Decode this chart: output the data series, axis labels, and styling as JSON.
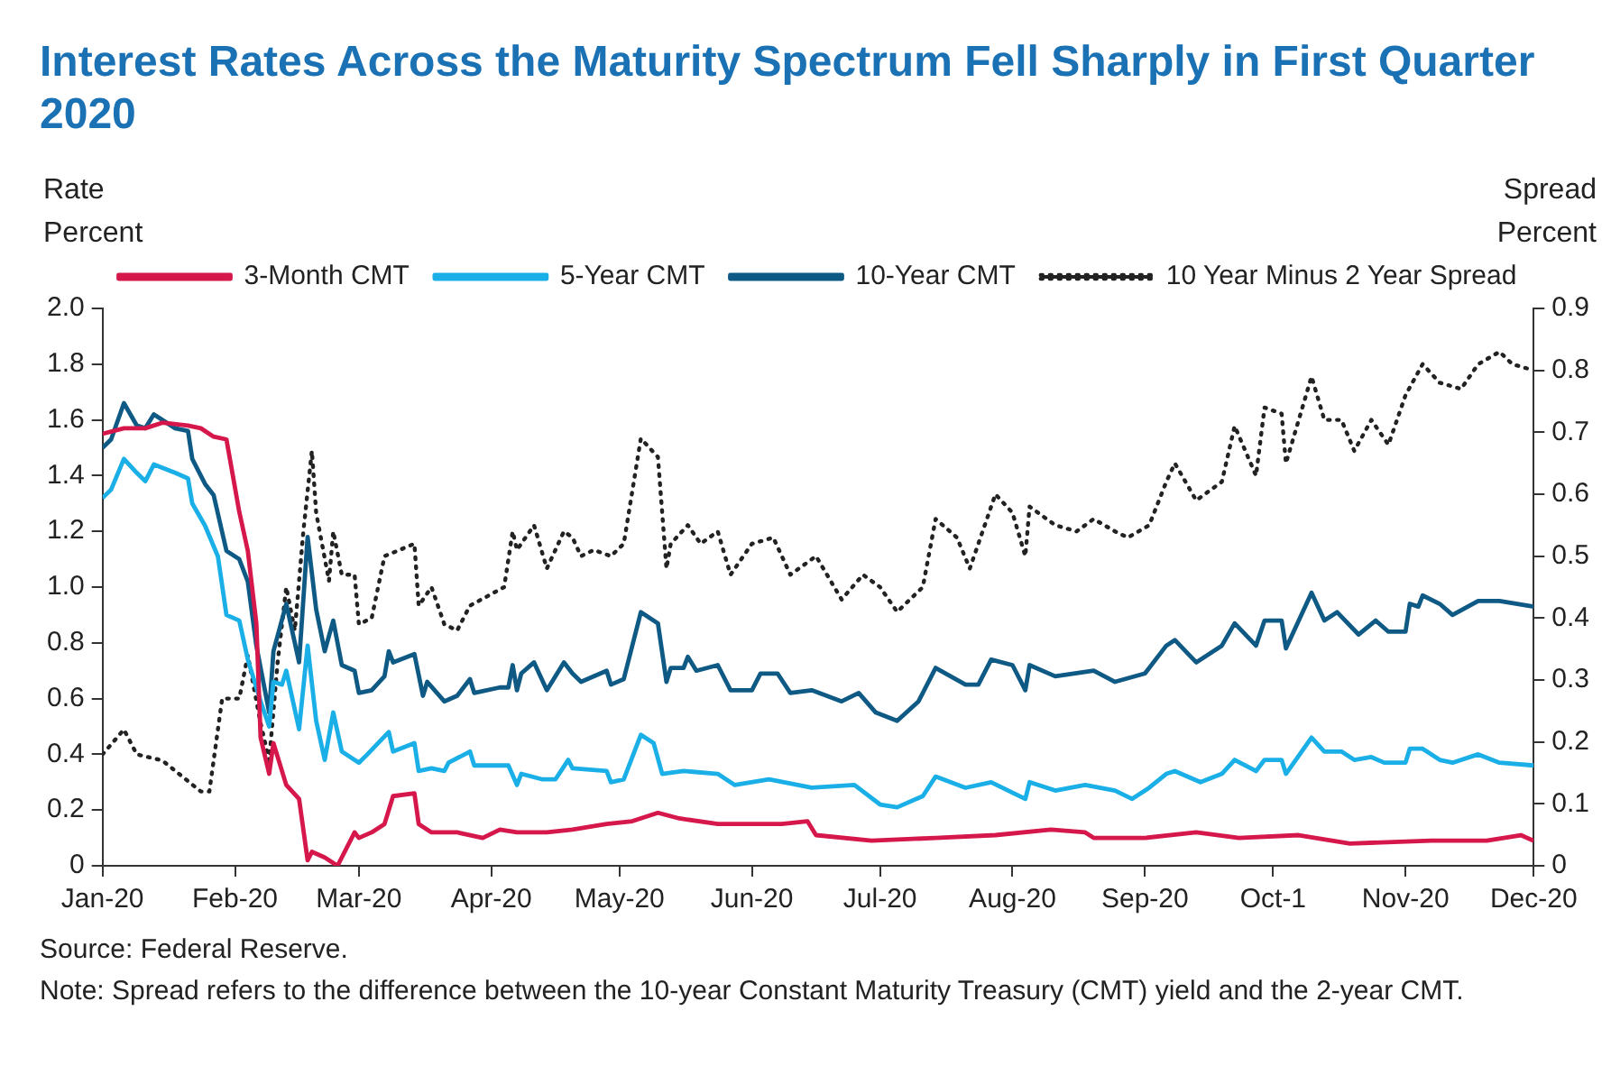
{
  "chart_data": {
    "type": "line",
    "title": "Interest Rates Across the Maturity Spectrum Fell Sharply in First Quarter 2020",
    "ylabel": "Rate\nPercent",
    "y2label": "Spread\nPercent",
    "xlim": [
      "2020-01-01",
      "2020-12-01"
    ],
    "xticks": [
      {
        "value": "2020-01-01",
        "label": "Jan-20"
      },
      {
        "value": "2020-02-01",
        "label": "Feb-20"
      },
      {
        "value": "2020-03-01",
        "label": "Mar-20"
      },
      {
        "value": "2020-04-01",
        "label": "Apr-20"
      },
      {
        "value": "2020-05-01",
        "label": "May-20"
      },
      {
        "value": "2020-06-01",
        "label": "Jun-20"
      },
      {
        "value": "2020-07-01",
        "label": "Jul-20"
      },
      {
        "value": "2020-08-01",
        "label": "Aug-20"
      },
      {
        "value": "2020-09-01",
        "label": "Sep-20"
      },
      {
        "value": "2020-10-01",
        "label": "Oct-1"
      },
      {
        "value": "2020-11-01",
        "label": "Nov-20"
      },
      {
        "value": "2020-12-01",
        "label": "Dec-20"
      }
    ],
    "ylim": [
      0,
      2
    ],
    "yticks": [
      0,
      0.2,
      0.4,
      0.6,
      0.8,
      {
        "value": 1,
        "label": "1.0"
      },
      1.2,
      1.4,
      1.6,
      1.8,
      {
        "value": 2,
        "label": "2.0"
      }
    ],
    "y2lim": [
      0,
      0.9
    ],
    "y2ticks": [
      0,
      0.1,
      0.2,
      0.3,
      0.4,
      0.5,
      0.6,
      0.7,
      0.8,
      0.9
    ],
    "grid": false,
    "legend": "top",
    "marker": "none",
    "series": [
      {
        "name": "3-Month CMT",
        "color": "#d6174b",
        "line_style": "solid",
        "x": [
          "2020-01-01",
          "2020-01-06",
          "2020-01-11",
          "2020-01-15",
          "2020-01-21",
          "2020-01-24",
          "2020-01-27",
          "2020-01-30",
          "2020-02-02",
          "2020-02-04",
          "2020-02-06",
          "2020-02-07",
          "2020-02-09",
          "2020-02-10",
          "2020-02-13",
          "2020-02-16",
          "2020-02-18",
          "2020-02-19",
          "2020-02-22",
          "2020-02-25",
          "2020-02-29",
          "2020-03-01",
          "2020-03-04",
          "2020-03-07",
          "2020-03-09",
          "2020-03-14",
          "2020-03-15",
          "2020-03-18",
          "2020-03-24",
          "2020-03-30",
          "2020-04-03",
          "2020-04-07",
          "2020-04-14",
          "2020-04-20",
          "2020-04-28",
          "2020-05-04",
          "2020-05-10",
          "2020-05-15",
          "2020-05-24",
          "2020-06-01",
          "2020-06-08",
          "2020-06-14",
          "2020-06-16",
          "2020-06-29",
          "2020-07-14",
          "2020-07-28",
          "2020-08-10",
          "2020-08-18",
          "2020-08-20",
          "2020-09-01",
          "2020-09-13",
          "2020-09-23",
          "2020-10-07",
          "2020-10-19",
          "2020-11-07",
          "2020-11-20",
          "2020-11-28",
          "2020-12-01"
        ],
        "values": [
          1.55,
          1.57,
          1.57,
          1.59,
          1.58,
          1.57,
          1.54,
          1.53,
          1.27,
          1.13,
          0.87,
          0.46,
          0.33,
          0.44,
          0.29,
          0.24,
          0.02,
          0.05,
          0.03,
          0,
          0.12,
          0.1,
          0.12,
          0.15,
          0.25,
          0.26,
          0.15,
          0.12,
          0.12,
          0.1,
          0.13,
          0.12,
          0.12,
          0.13,
          0.15,
          0.16,
          0.19,
          0.17,
          0.15,
          0.15,
          0.15,
          0.16,
          0.11,
          0.09,
          0.1,
          0.11,
          0.13,
          0.12,
          0.1,
          0.1,
          0.12,
          0.1,
          0.11,
          0.08,
          0.09,
          0.09,
          0.11,
          0.09
        ]
      },
      {
        "name": "5-Year CMT",
        "color": "#1aafe6",
        "line_style": "solid",
        "x": [
          "2020-01-01",
          "2020-01-03",
          "2020-01-06",
          "2020-01-09",
          "2020-01-11",
          "2020-01-13",
          "2020-01-18",
          "2020-01-21",
          "2020-01-22",
          "2020-01-25",
          "2020-01-28",
          "2020-01-30",
          "2020-02-02",
          "2020-02-04",
          "2020-02-07",
          "2020-02-09",
          "2020-02-10",
          "2020-02-12",
          "2020-02-13",
          "2020-02-16",
          "2020-02-18",
          "2020-02-20",
          "2020-02-22",
          "2020-02-24",
          "2020-02-26",
          "2020-03-01",
          "2020-03-03",
          "2020-03-08",
          "2020-03-09",
          "2020-03-14",
          "2020-03-15",
          "2020-03-18",
          "2020-03-21",
          "2020-03-22",
          "2020-03-27",
          "2020-03-28",
          "2020-04-05",
          "2020-04-07",
          "2020-04-08",
          "2020-04-13",
          "2020-04-16",
          "2020-04-19",
          "2020-04-20",
          "2020-04-28",
          "2020-04-29",
          "2020-05-02",
          "2020-05-06",
          "2020-05-09",
          "2020-05-11",
          "2020-05-16",
          "2020-05-24",
          "2020-05-28",
          "2020-06-05",
          "2020-06-15",
          "2020-06-25",
          "2020-07-01",
          "2020-07-05",
          "2020-07-11",
          "2020-07-14",
          "2020-07-21",
          "2020-07-27",
          "2020-08-04",
          "2020-08-05",
          "2020-08-11",
          "2020-08-18",
          "2020-08-25",
          "2020-08-29",
          "2020-09-02",
          "2020-09-06",
          "2020-09-08",
          "2020-09-14",
          "2020-09-19",
          "2020-09-22",
          "2020-09-27",
          "2020-09-29",
          "2020-10-03",
          "2020-10-04",
          "2020-10-10",
          "2020-10-13",
          "2020-10-17",
          "2020-10-20",
          "2020-10-24",
          "2020-10-27",
          "2020-11-01",
          "2020-11-02",
          "2020-11-05",
          "2020-11-09",
          "2020-11-12",
          "2020-11-18",
          "2020-11-23",
          "2020-12-01"
        ],
        "values": [
          1.32,
          1.35,
          1.46,
          1.41,
          1.38,
          1.44,
          1.41,
          1.39,
          1.3,
          1.22,
          1.11,
          0.9,
          0.88,
          0.74,
          0.59,
          0.5,
          0.66,
          0.65,
          0.7,
          0.49,
          0.79,
          0.52,
          0.38,
          0.55,
          0.41,
          0.37,
          0.4,
          0.48,
          0.41,
          0.44,
          0.34,
          0.35,
          0.34,
          0.37,
          0.41,
          0.36,
          0.36,
          0.29,
          0.33,
          0.31,
          0.31,
          0.38,
          0.35,
          0.34,
          0.3,
          0.31,
          0.47,
          0.44,
          0.33,
          0.34,
          0.33,
          0.29,
          0.31,
          0.28,
          0.29,
          0.22,
          0.21,
          0.25,
          0.32,
          0.28,
          0.3,
          0.24,
          0.3,
          0.27,
          0.29,
          0.27,
          0.24,
          0.28,
          0.33,
          0.34,
          0.3,
          0.33,
          0.38,
          0.34,
          0.38,
          0.38,
          0.33,
          0.46,
          0.41,
          0.41,
          0.38,
          0.39,
          0.37,
          0.37,
          0.42,
          0.42,
          0.38,
          0.37,
          0.4,
          0.37,
          0.36
        ]
      },
      {
        "name": "10-Year CMT",
        "color": "#0f5a85",
        "line_style": "solid",
        "x": [
          "2020-01-01",
          "2020-01-03",
          "2020-01-06",
          "2020-01-09",
          "2020-01-11",
          "2020-01-13",
          "2020-01-18",
          "2020-01-21",
          "2020-01-22",
          "2020-01-25",
          "2020-01-27",
          "2020-01-30",
          "2020-02-02",
          "2020-02-04",
          "2020-02-06",
          "2020-02-09",
          "2020-02-10",
          "2020-02-13",
          "2020-02-16",
          "2020-02-18",
          "2020-02-20",
          "2020-02-22",
          "2020-02-24",
          "2020-02-26",
          "2020-02-29",
          "2020-03-01",
          "2020-03-04",
          "2020-03-07",
          "2020-03-08",
          "2020-03-09",
          "2020-03-14",
          "2020-03-16",
          "2020-03-17",
          "2020-03-21",
          "2020-03-24",
          "2020-03-27",
          "2020-03-28",
          "2020-04-03",
          "2020-04-05",
          "2020-04-06",
          "2020-04-07",
          "2020-04-08",
          "2020-04-11",
          "2020-04-14",
          "2020-04-18",
          "2020-04-20",
          "2020-04-22",
          "2020-04-28",
          "2020-04-29",
          "2020-05-02",
          "2020-05-06",
          "2020-05-10",
          "2020-05-12",
          "2020-05-13",
          "2020-05-16",
          "2020-05-17",
          "2020-05-19",
          "2020-05-24",
          "2020-05-27",
          "2020-06-01",
          "2020-06-03",
          "2020-06-07",
          "2020-06-10",
          "2020-06-15",
          "2020-06-22",
          "2020-06-26",
          "2020-06-30",
          "2020-07-05",
          "2020-07-10",
          "2020-07-14",
          "2020-07-21",
          "2020-07-24",
          "2020-07-27",
          "2020-08-01",
          "2020-08-04",
          "2020-08-05",
          "2020-08-11",
          "2020-08-20",
          "2020-08-25",
          "2020-09-01",
          "2020-09-06",
          "2020-09-08",
          "2020-09-13",
          "2020-09-19",
          "2020-09-22",
          "2020-09-27",
          "2020-09-29",
          "2020-10-03",
          "2020-10-04",
          "2020-10-10",
          "2020-10-13",
          "2020-10-16",
          "2020-10-21",
          "2020-10-25",
          "2020-10-28",
          "2020-11-01",
          "2020-11-02",
          "2020-11-04",
          "2020-11-05",
          "2020-11-09",
          "2020-11-12",
          "2020-11-18",
          "2020-11-23",
          "2020-12-01"
        ],
        "values": [
          1.5,
          1.53,
          1.66,
          1.58,
          1.57,
          1.62,
          1.57,
          1.56,
          1.46,
          1.37,
          1.33,
          1.13,
          1.1,
          1.02,
          0.79,
          0.55,
          0.77,
          0.94,
          0.73,
          1.18,
          0.92,
          0.77,
          0.88,
          0.72,
          0.7,
          0.62,
          0.63,
          0.68,
          0.77,
          0.73,
          0.76,
          0.61,
          0.66,
          0.59,
          0.61,
          0.67,
          0.62,
          0.64,
          0.64,
          0.72,
          0.63,
          0.69,
          0.73,
          0.63,
          0.73,
          0.69,
          0.66,
          0.7,
          0.65,
          0.67,
          0.91,
          0.87,
          0.66,
          0.71,
          0.71,
          0.75,
          0.7,
          0.72,
          0.63,
          0.63,
          0.69,
          0.69,
          0.62,
          0.63,
          0.59,
          0.62,
          0.55,
          0.52,
          0.59,
          0.71,
          0.65,
          0.65,
          0.74,
          0.72,
          0.63,
          0.72,
          0.68,
          0.7,
          0.66,
          0.69,
          0.79,
          0.81,
          0.73,
          0.79,
          0.87,
          0.79,
          0.88,
          0.88,
          0.78,
          0.98,
          0.88,
          0.91,
          0.83,
          0.88,
          0.84,
          0.84,
          0.94,
          0.93,
          0.97,
          0.94,
          0.9,
          0.95,
          0.95,
          0.93
        ]
      },
      {
        "name": "10 Year Minus 2 Year Spread",
        "color": "#222222",
        "line_style": "dotted",
        "axis": "y2",
        "x": [
          "2020-01-01",
          "2020-01-06",
          "2020-01-09",
          "2020-01-15",
          "2020-01-24",
          "2020-01-26",
          "2020-01-29",
          "2020-02-02",
          "2020-02-04",
          "2020-02-07",
          "2020-02-09",
          "2020-02-11",
          "2020-02-13",
          "2020-02-15",
          "2020-02-17",
          "2020-02-19",
          "2020-02-20",
          "2020-02-23",
          "2020-02-24",
          "2020-02-26",
          "2020-02-29",
          "2020-03-01",
          "2020-03-04",
          "2020-03-07",
          "2020-03-14",
          "2020-03-15",
          "2020-03-18",
          "2020-03-21",
          "2020-03-24",
          "2020-03-27",
          "2020-04-04",
          "2020-04-06",
          "2020-04-07",
          "2020-04-11",
          "2020-04-14",
          "2020-04-18",
          "2020-04-20",
          "2020-04-22",
          "2020-04-25",
          "2020-04-29",
          "2020-05-02",
          "2020-05-06",
          "2020-05-10",
          "2020-05-12",
          "2020-05-13",
          "2020-05-17",
          "2020-05-20",
          "2020-05-24",
          "2020-05-27",
          "2020-06-01",
          "2020-06-06",
          "2020-06-10",
          "2020-06-14",
          "2020-06-16",
          "2020-06-22",
          "2020-06-27",
          "2020-07-01",
          "2020-07-05",
          "2020-07-11",
          "2020-07-14",
          "2020-07-19",
          "2020-07-22",
          "2020-07-28",
          "2020-08-01",
          "2020-08-04",
          "2020-08-05",
          "2020-08-11",
          "2020-08-16",
          "2020-08-20",
          "2020-08-25",
          "2020-08-28",
          "2020-09-02",
          "2020-09-06",
          "2020-09-08",
          "2020-09-13",
          "2020-09-19",
          "2020-09-22",
          "2020-09-27",
          "2020-09-29",
          "2020-10-03",
          "2020-10-04",
          "2020-10-10",
          "2020-10-13",
          "2020-10-17",
          "2020-10-20",
          "2020-10-24",
          "2020-10-28",
          "2020-11-01",
          "2020-11-05",
          "2020-11-09",
          "2020-11-14",
          "2020-11-18",
          "2020-11-23",
          "2020-11-26",
          "2020-12-01"
        ],
        "values": [
          0.18,
          0.22,
          0.18,
          0.17,
          0.12,
          0.12,
          0.27,
          0.27,
          0.34,
          0.23,
          0.17,
          0.33,
          0.45,
          0.38,
          0.54,
          0.67,
          0.57,
          0.46,
          0.54,
          0.47,
          0.47,
          0.39,
          0.4,
          0.5,
          0.52,
          0.42,
          0.45,
          0.39,
          0.38,
          0.42,
          0.45,
          0.54,
          0.51,
          0.55,
          0.48,
          0.54,
          0.53,
          0.5,
          0.51,
          0.5,
          0.52,
          0.69,
          0.66,
          0.48,
          0.52,
          0.55,
          0.52,
          0.54,
          0.47,
          0.52,
          0.53,
          0.47,
          0.49,
          0.5,
          0.43,
          0.47,
          0.45,
          0.41,
          0.45,
          0.56,
          0.53,
          0.48,
          0.6,
          0.57,
          0.5,
          0.58,
          0.55,
          0.54,
          0.56,
          0.54,
          0.53,
          0.55,
          0.62,
          0.65,
          0.59,
          0.62,
          0.71,
          0.63,
          0.74,
          0.73,
          0.65,
          0.79,
          0.72,
          0.72,
          0.67,
          0.72,
          0.68,
          0.76,
          0.81,
          0.78,
          0.77,
          0.81,
          0.83,
          0.81,
          0.8
        ]
      }
    ],
    "annotations": [
      "Source: Federal Reserve.",
      "Note: Spread refers to the difference between the 10-year Constant Maturity Treasury (CMT) yield and the 2-year CMT."
    ]
  }
}
